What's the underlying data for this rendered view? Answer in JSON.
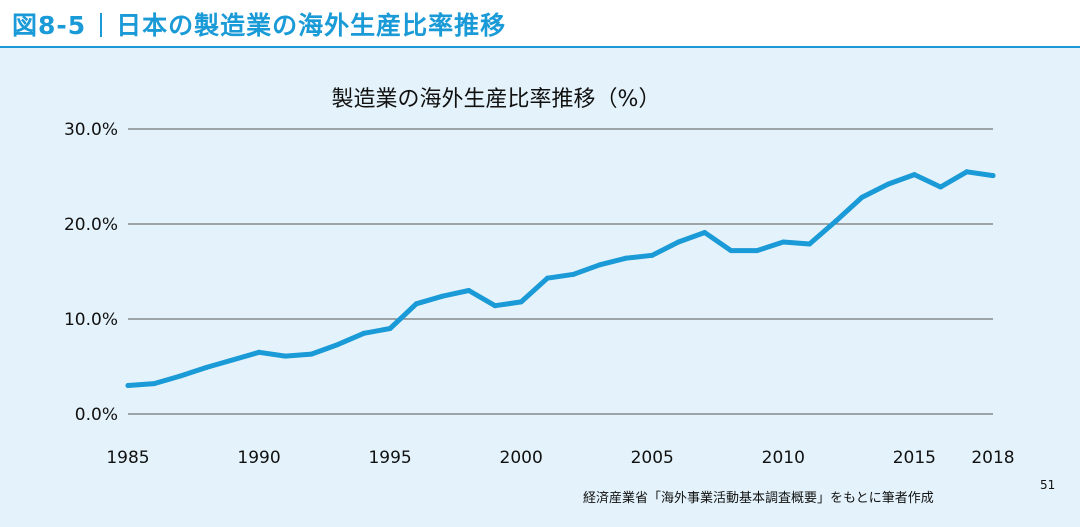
{
  "header": {
    "figure_number": "図8-5",
    "figure_title": "日本の製造業の海外生産比率推移"
  },
  "colors": {
    "accent": "#1a9ad6",
    "panel_background": "#e4f3fb",
    "line": "#1a9ad6",
    "gridline": "#555555"
  },
  "chart_data": {
    "type": "line",
    "title": "製造業の海外生産比率推移（%）",
    "xlabel": "",
    "ylabel": "",
    "x": [
      1985,
      1986,
      1987,
      1988,
      1989,
      1990,
      1991,
      1992,
      1993,
      1994,
      1995,
      1996,
      1997,
      1998,
      1999,
      2000,
      2001,
      2002,
      2003,
      2004,
      2005,
      2006,
      2007,
      2008,
      2009,
      2010,
      2011,
      2012,
      2013,
      2014,
      2015,
      2016,
      2017,
      2018
    ],
    "series": [
      {
        "values": [
          3.0,
          3.2,
          4.0,
          4.9,
          5.7,
          6.5,
          6.1,
          6.3,
          7.3,
          8.5,
          9.0,
          11.6,
          12.4,
          13.0,
          11.4,
          11.8,
          14.3,
          14.7,
          15.7,
          16.4,
          16.7,
          18.1,
          19.1,
          17.2,
          17.2,
          18.1,
          17.9,
          20.3,
          22.8,
          24.2,
          25.2,
          23.9,
          25.5,
          25.1
        ]
      }
    ],
    "xlim": [
      1985,
      2018
    ],
    "ylim": [
      0,
      30
    ],
    "x_tick_labels": [
      "1985",
      "1990",
      "1995",
      "2000",
      "2005",
      "2010",
      "2015",
      "2018"
    ],
    "y_tick_labels": [
      "30.0%",
      "20.0%",
      "10.0%",
      "0.0%"
    ],
    "grid": true,
    "legend": "none"
  },
  "footer": {
    "source": "経済産業省「海外事業活動基本調査概要」をもとに筆者作成",
    "page_number": "51"
  }
}
